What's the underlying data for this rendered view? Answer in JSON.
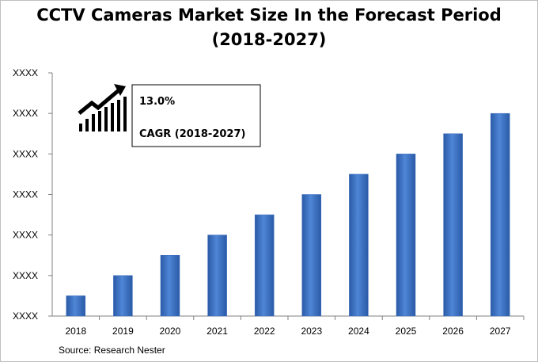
{
  "chart_data": {
    "type": "bar",
    "title_line1": "CCTV Cameras Market Size In the Forecast Period",
    "title_line2": "(2018-2027)",
    "categories": [
      "2018",
      "2019",
      "2020",
      "2021",
      "2022",
      "2023",
      "2024",
      "2025",
      "2026",
      "2027"
    ],
    "values": [
      1,
      2,
      3,
      4,
      5,
      6,
      7,
      8,
      9,
      10
    ],
    "ylim": [
      0,
      12
    ],
    "ytick_labels": [
      "XXXX",
      "XXXX",
      "XXXX",
      "XXXX",
      "XXXX",
      "XXXX",
      "XXXX"
    ],
    "xlabel": "",
    "ylabel": "",
    "grid": false,
    "legend": "none",
    "bar_color": "#3d6fbf",
    "annotation": {
      "value": "13.0%",
      "label": "CAGR (2018-2027)",
      "icon": "growth-chart-icon"
    },
    "source": "Source: Research Nester"
  }
}
